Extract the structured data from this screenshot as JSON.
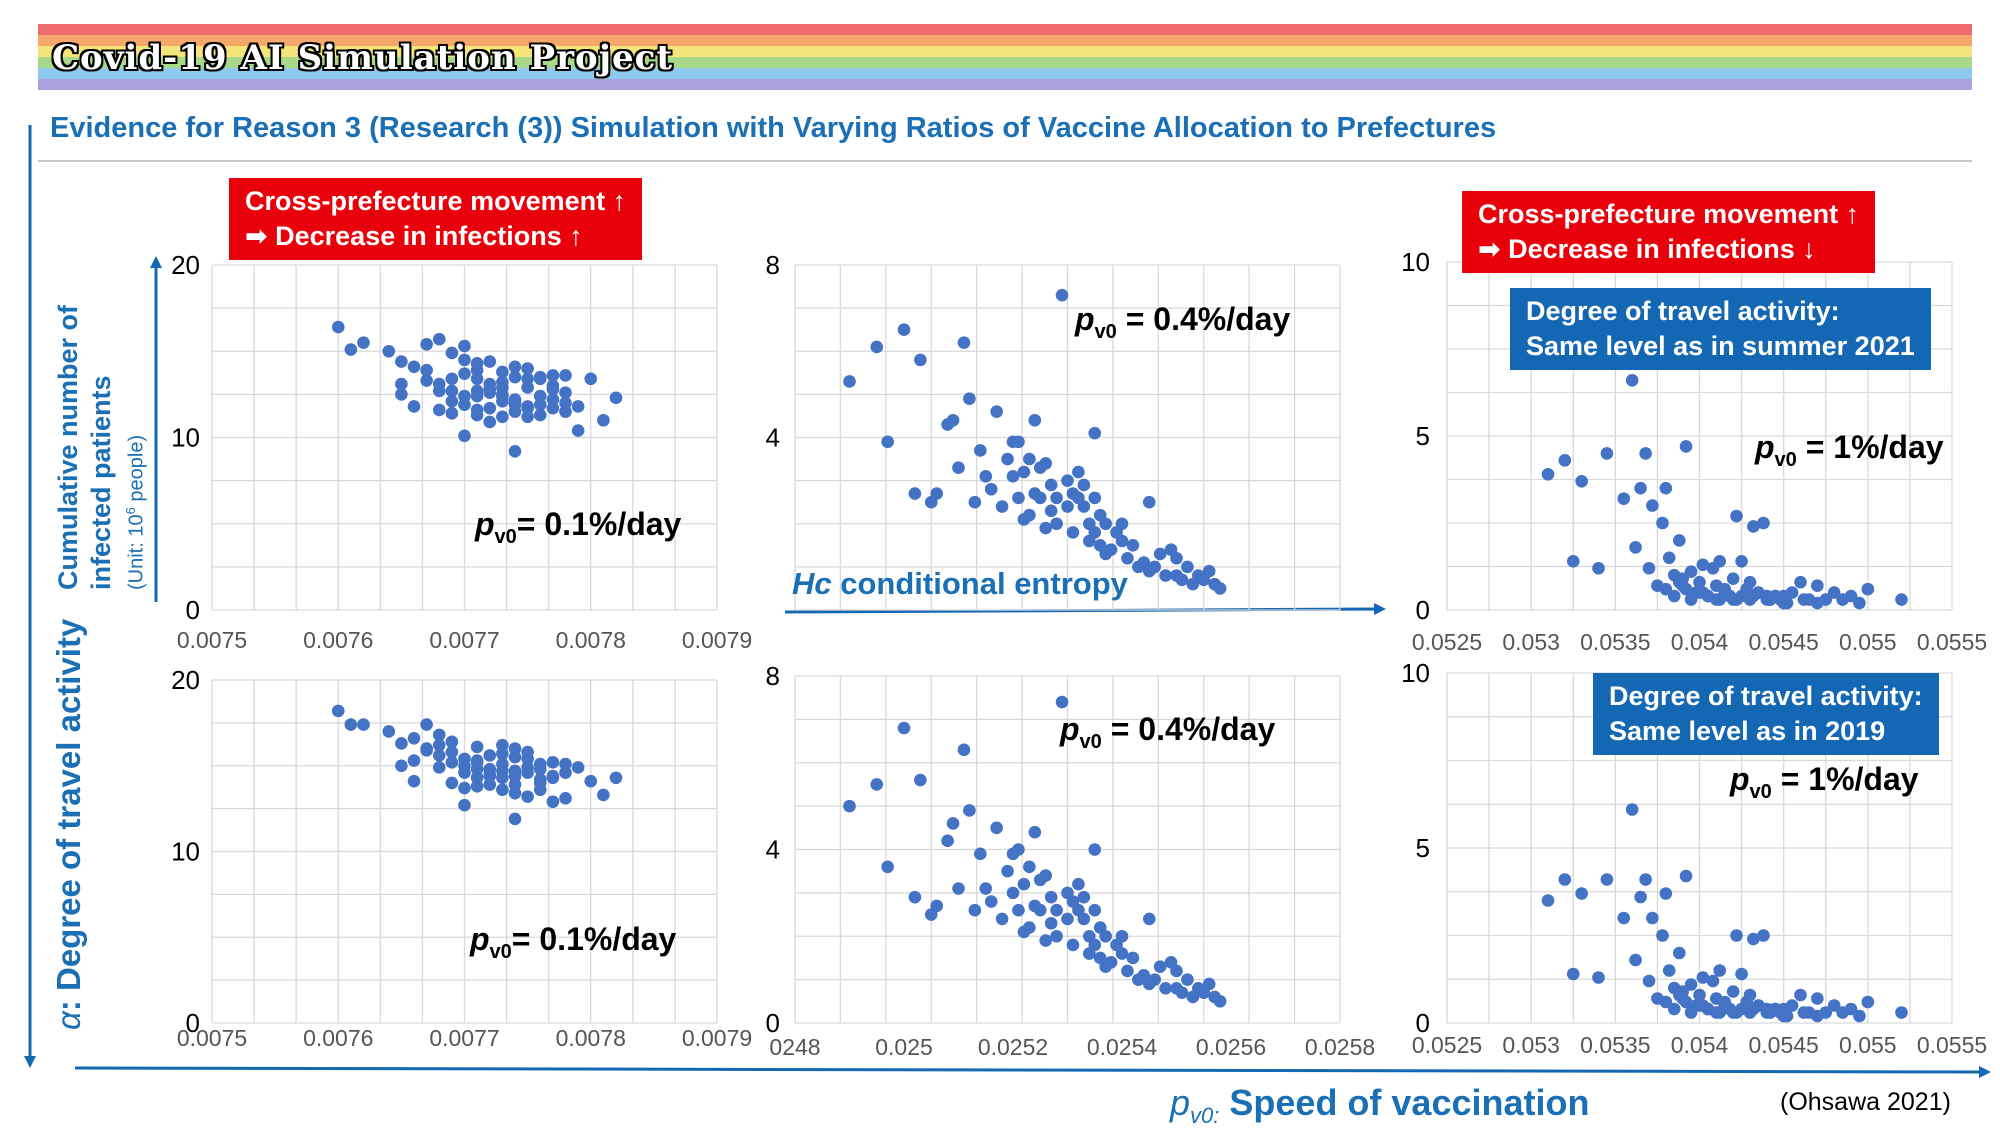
{
  "header": {
    "banner_title": "Covid-19 AI Simulation Project",
    "banner_colors": [
      "#ee6b6f",
      "#f5a86a",
      "#f3e57a",
      "#a9d889",
      "#8fc9ee",
      "#a9a2dc"
    ],
    "subtitle": "Evidence for Reason 3 (Research (3)) Simulation with Varying Ratios of Vaccine Allocation to Prefectures"
  },
  "annotations": {
    "left_box_line1": "Cross-prefecture movement ↑",
    "left_box_line2": "➡    Decrease in infections ↑",
    "right_box_line1": "Cross-prefecture movement ↑",
    "right_box_line2": "➡    Decrease in infections ↓",
    "blue_top_line1": "Degree of travel activity:",
    "blue_top_line2": "Same level as in summer 2021",
    "blue_bottom_line1": "Degree of travel activity:",
    "blue_bottom_line2": "Same level as in 2019",
    "hc_symbol": "Hc",
    "hc_text": " conditional entropy",
    "y_axis_title_line1": "Cumulative number of",
    "y_axis_title_line2": "infected patients",
    "y_axis_unit": "(Unit: 10",
    "y_axis_unit_exp": "6",
    "y_axis_unit_end": " people)",
    "alpha_symbol": "α",
    "alpha_text": ": Degree of travel activity",
    "pv0_symbol": "p",
    "pv0_sub": "v0:",
    "pv0_text": " Speed of vaccination",
    "citation": "(Ohsawa 2021)",
    "accent_blue": "#1a6fb5",
    "alert_red": "#e8000b"
  },
  "chart_data": [
    {
      "type": "scatter",
      "id": "top-left",
      "xlim": [
        0.0075,
        0.0079
      ],
      "ylim": [
        0,
        20
      ],
      "x_ticks": [
        "0.0075",
        "0.0076",
        "0.0077",
        "0.0078",
        "0.0079"
      ],
      "y_ticks": [
        "0",
        "10",
        "20"
      ],
      "grid": true,
      "label": {
        "sym": "p",
        "sub": "v0",
        "text": "= 0.1%/day"
      },
      "x": [
        0.0076,
        0.00761,
        0.00762,
        0.00764,
        0.00765,
        0.00765,
        0.00765,
        0.00766,
        0.00766,
        0.00767,
        0.00767,
        0.00768,
        0.00768,
        0.00768,
        0.00769,
        0.00769,
        0.00769,
        0.00769,
        0.0077,
        0.0077,
        0.0077,
        0.0077,
        0.0077,
        0.00771,
        0.00771,
        0.00771,
        0.00771,
        0.00771,
        0.00772,
        0.00772,
        0.00772,
        0.00772,
        0.00772,
        0.00773,
        0.00773,
        0.00773,
        0.00773,
        0.00773,
        0.00773,
        0.00774,
        0.00774,
        0.00774,
        0.00774,
        0.00774,
        0.00774,
        0.00775,
        0.00775,
        0.00775,
        0.00775,
        0.00775,
        0.00776,
        0.00776,
        0.00776,
        0.00776,
        0.00777,
        0.00777,
        0.00777,
        0.00777,
        0.00778,
        0.00778,
        0.00778,
        0.00778,
        0.00779,
        0.00779,
        0.0078,
        0.00781,
        0.00782,
        0.00767,
        0.00769,
        0.00771,
        0.00773,
        0.00775,
        0.00777,
        0.0077,
        0.00772,
        0.00774,
        0.00776,
        0.00768,
        0.00771,
        0.00774
      ],
      "y": [
        16.4,
        15.1,
        15.5,
        15.0,
        14.4,
        13.1,
        12.5,
        14.1,
        11.8,
        15.4,
        13.3,
        15.7,
        12.7,
        11.6,
        14.9,
        12.1,
        11.4,
        13.4,
        13.7,
        12.4,
        15.3,
        10.1,
        11.9,
        13.4,
        14.3,
        12.7,
        11.3,
        13.9,
        11.7,
        12.8,
        13.1,
        10.9,
        14.4,
        13.2,
        12.4,
        11.2,
        13.8,
        12.5,
        12.9,
        13.5,
        11.9,
        14.1,
        9.2,
        12.2,
        11.5,
        13.4,
        11.8,
        12.9,
        14.0,
        11.2,
        12.4,
        13.4,
        11.9,
        11.3,
        12.8,
        13.6,
        11.7,
        13.0,
        12.0,
        12.6,
        13.6,
        11.5,
        10.4,
        11.8,
        13.4,
        11.0,
        12.3,
        13.9,
        12.7,
        11.6,
        12.1,
        11.7,
        12.2,
        14.5,
        12.6,
        12.0,
        13.5,
        13.1,
        12.4,
        12.0
      ]
    },
    {
      "type": "scatter",
      "id": "top-middle",
      "xlim": [
        0.0248,
        0.0258
      ],
      "ylim": [
        0,
        8
      ],
      "x_ticks": [],
      "y_ticks": [
        "4",
        "8"
      ],
      "grid": true,
      "label": {
        "sym": "p",
        "sub": "v0",
        "text": " = 0.4%/day"
      },
      "x": [
        0.0249,
        0.02495,
        0.02497,
        0.025,
        0.02502,
        0.02503,
        0.02505,
        0.02506,
        0.02508,
        0.02509,
        0.0251,
        0.02511,
        0.02512,
        0.02513,
        0.02514,
        0.02515,
        0.02516,
        0.02517,
        0.02518,
        0.02519,
        0.0252,
        0.0252,
        0.02521,
        0.02521,
        0.02522,
        0.02522,
        0.02523,
        0.02523,
        0.02524,
        0.02524,
        0.02525,
        0.02525,
        0.02526,
        0.02526,
        0.02527,
        0.02527,
        0.02528,
        0.02528,
        0.02529,
        0.0253,
        0.0253,
        0.02531,
        0.02531,
        0.02532,
        0.02532,
        0.02533,
        0.02533,
        0.02534,
        0.02534,
        0.02535,
        0.02535,
        0.02536,
        0.02536,
        0.02537,
        0.02537,
        0.02538,
        0.02539,
        0.0254,
        0.02541,
        0.02542,
        0.02543,
        0.02544,
        0.02545,
        0.02546,
        0.02547,
        0.02548,
        0.02549,
        0.0255,
        0.02551,
        0.02552,
        0.02553,
        0.02554,
        0.02555,
        0.02556,
        0.02557,
        0.02558,
        0.02545,
        0.0255,
        0.0254,
        0.02535
      ],
      "y": [
        5.3,
        6.1,
        3.9,
        6.5,
        2.7,
        5.8,
        2.5,
        2.7,
        4.3,
        4.4,
        3.3,
        6.2,
        4.9,
        2.5,
        3.7,
        3.1,
        2.8,
        4.6,
        2.4,
        3.5,
        3.1,
        3.9,
        2.6,
        3.9,
        2.1,
        3.2,
        2.2,
        3.5,
        2.7,
        4.4,
        2.6,
        3.3,
        1.9,
        3.4,
        2.9,
        2.3,
        2.6,
        2.0,
        7.3,
        2.4,
        3.0,
        1.8,
        2.7,
        2.6,
        3.2,
        2.9,
        2.4,
        2.0,
        1.6,
        2.6,
        1.8,
        2.2,
        1.5,
        2.0,
        1.3,
        1.4,
        1.8,
        1.6,
        1.2,
        1.5,
        1.0,
        1.1,
        0.9,
        1.0,
        1.3,
        0.8,
        1.4,
        0.8,
        0.7,
        1.0,
        0.6,
        0.8,
        0.7,
        0.9,
        0.6,
        0.5,
        2.5,
        1.2,
        2.0,
        4.1
      ]
    },
    {
      "type": "scatter",
      "id": "top-right",
      "xlim": [
        0.0525,
        0.0555
      ],
      "ylim": [
        0,
        10
      ],
      "x_ticks": [
        "0.0525",
        "0.053",
        "0.0535",
        "0.054",
        "0.0545",
        "0.055",
        "0.0555"
      ],
      "y_ticks": [
        "0",
        "5",
        "10"
      ],
      "grid": true,
      "label": {
        "sym": "p",
        "sub": "v0",
        "text": " = 1%/day"
      },
      "x": [
        0.0531,
        0.0532,
        0.05325,
        0.0533,
        0.0534,
        0.05345,
        0.05355,
        0.0536,
        0.05362,
        0.05365,
        0.05368,
        0.0537,
        0.05372,
        0.05375,
        0.05378,
        0.0538,
        0.05382,
        0.05385,
        0.05388,
        0.0539,
        0.05392,
        0.05395,
        0.05398,
        0.054,
        0.05402,
        0.05405,
        0.05408,
        0.0541,
        0.05412,
        0.05415,
        0.05418,
        0.0542,
        0.05422,
        0.05425,
        0.05428,
        0.0543,
        0.05432,
        0.05435,
        0.05438,
        0.0544,
        0.05442,
        0.05445,
        0.05448,
        0.0545,
        0.05455,
        0.0546,
        0.05465,
        0.0547,
        0.05475,
        0.0548,
        0.05485,
        0.0549,
        0.05495,
        0.055,
        0.0552,
        0.0538,
        0.05385,
        0.0539,
        0.05395,
        0.054,
        0.05405,
        0.0541,
        0.05415,
        0.0542,
        0.05425,
        0.0543,
        0.05435,
        0.0544,
        0.05445,
        0.0545,
        0.05388,
        0.05392,
        0.05402,
        0.05412,
        0.05422,
        0.05432,
        0.05442,
        0.05452,
        0.05462,
        0.0547
      ],
      "y": [
        3.9,
        4.3,
        1.4,
        3.7,
        1.2,
        4.5,
        3.2,
        6.6,
        1.8,
        3.5,
        4.5,
        1.2,
        3.0,
        0.7,
        2.5,
        3.5,
        1.5,
        1.0,
        2.0,
        0.9,
        4.7,
        1.1,
        0.5,
        0.8,
        1.3,
        0.4,
        1.2,
        0.7,
        1.4,
        0.6,
        0.4,
        0.9,
        2.7,
        1.4,
        0.6,
        0.8,
        2.4,
        0.5,
        2.5,
        0.4,
        0.3,
        0.4,
        0.3,
        0.4,
        0.5,
        0.8,
        0.3,
        0.7,
        0.3,
        0.5,
        0.3,
        0.4,
        0.2,
        0.6,
        0.3,
        0.6,
        0.4,
        0.7,
        0.3,
        0.5,
        0.4,
        0.3,
        0.5,
        0.3,
        0.4,
        0.3,
        0.5,
        0.3,
        0.4,
        0.2,
        0.8,
        0.6,
        0.5,
        0.3,
        0.3,
        0.4,
        0.3,
        0.2,
        0.3,
        0.2
      ]
    },
    {
      "type": "scatter",
      "id": "bottom-left",
      "xlim": [
        0.0075,
        0.0079
      ],
      "ylim": [
        0,
        20
      ],
      "x_ticks": [
        "0.0075",
        "0.0076",
        "0.0077",
        "0.0078",
        "0.0079"
      ],
      "y_ticks": [
        "0",
        "10",
        "20"
      ],
      "grid": true,
      "label": {
        "sym": "p",
        "sub": "v0",
        "text": "= 0.1%/day"
      },
      "x": [
        0.0076,
        0.00761,
        0.00762,
        0.00764,
        0.00765,
        0.00765,
        0.00766,
        0.00766,
        0.00767,
        0.00767,
        0.00768,
        0.00768,
        0.00768,
        0.00769,
        0.00769,
        0.00769,
        0.0077,
        0.0077,
        0.0077,
        0.0077,
        0.00771,
        0.00771,
        0.00771,
        0.00771,
        0.00772,
        0.00772,
        0.00772,
        0.00772,
        0.00773,
        0.00773,
        0.00773,
        0.00773,
        0.00773,
        0.00774,
        0.00774,
        0.00774,
        0.00774,
        0.00774,
        0.00775,
        0.00775,
        0.00775,
        0.00775,
        0.00776,
        0.00776,
        0.00776,
        0.00776,
        0.00777,
        0.00777,
        0.00777,
        0.00778,
        0.00778,
        0.00778,
        0.00779,
        0.0078,
        0.00781,
        0.00782,
        0.00767,
        0.00769,
        0.00771,
        0.00773,
        0.00775,
        0.00777,
        0.0077,
        0.00772,
        0.00774,
        0.00776,
        0.00768,
        0.00771,
        0.00774,
        0.00766
      ],
      "y": [
        18.2,
        17.4,
        17.4,
        17.0,
        16.3,
        15.0,
        14.1,
        16.6,
        17.4,
        15.9,
        16.8,
        14.9,
        16.2,
        16.4,
        15.8,
        14.0,
        15.4,
        13.7,
        12.7,
        14.6,
        16.1,
        15.2,
        14.3,
        13.8,
        15.6,
        14.5,
        13.9,
        14.8,
        16.2,
        15.1,
        14.3,
        13.6,
        15.7,
        16.0,
        14.7,
        13.9,
        11.9,
        14.4,
        15.4,
        14.6,
        13.2,
        14.9,
        15.1,
        14.2,
        13.6,
        14.8,
        15.2,
        14.4,
        12.9,
        15.1,
        14.6,
        13.1,
        14.9,
        14.1,
        13.3,
        14.3,
        16.0,
        15.2,
        15.3,
        14.7,
        15.8,
        14.3,
        15.0,
        14.4,
        15.5,
        14.0,
        15.6,
        14.8,
        13.4,
        15.3
      ]
    },
    {
      "type": "scatter",
      "id": "bottom-middle",
      "xlim": [
        0.0248,
        0.0258
      ],
      "ylim": [
        0,
        8
      ],
      "x_ticks": [
        "0248",
        "0.025",
        "0.0252",
        "0.0254",
        "0.0256",
        "0.0258"
      ],
      "y_ticks": [
        "0",
        "4",
        "8"
      ],
      "grid": true,
      "label": {
        "sym": "p",
        "sub": "v0",
        "text": " = 0.4%/day"
      },
      "x": [
        0.0249,
        0.02495,
        0.02497,
        0.025,
        0.02502,
        0.02503,
        0.02505,
        0.02506,
        0.02508,
        0.02509,
        0.0251,
        0.02511,
        0.02512,
        0.02513,
        0.02514,
        0.02515,
        0.02516,
        0.02517,
        0.02518,
        0.02519,
        0.0252,
        0.0252,
        0.02521,
        0.02521,
        0.02522,
        0.02522,
        0.02523,
        0.02523,
        0.02524,
        0.02524,
        0.02525,
        0.02525,
        0.02526,
        0.02526,
        0.02527,
        0.02527,
        0.02528,
        0.02528,
        0.02529,
        0.0253,
        0.0253,
        0.02531,
        0.02531,
        0.02532,
        0.02532,
        0.02533,
        0.02533,
        0.02534,
        0.02534,
        0.02535,
        0.02535,
        0.02536,
        0.02536,
        0.02537,
        0.02537,
        0.02538,
        0.02539,
        0.0254,
        0.02541,
        0.02542,
        0.02543,
        0.02544,
        0.02545,
        0.02546,
        0.02547,
        0.02548,
        0.02549,
        0.0255,
        0.02551,
        0.02552,
        0.02553,
        0.02554,
        0.02555,
        0.02556,
        0.02557,
        0.02558,
        0.02545,
        0.0255,
        0.0254,
        0.02535
      ],
      "y": [
        5.0,
        5.5,
        3.6,
        6.8,
        2.9,
        5.6,
        2.5,
        2.7,
        4.2,
        4.6,
        3.1,
        6.3,
        4.9,
        2.6,
        3.9,
        3.1,
        2.8,
        4.5,
        2.4,
        3.5,
        3.0,
        3.9,
        2.6,
        4.0,
        2.1,
        3.2,
        2.2,
        3.6,
        2.7,
        4.4,
        2.6,
        3.3,
        1.9,
        3.4,
        2.9,
        2.3,
        2.6,
        2.0,
        7.4,
        2.4,
        3.0,
        1.8,
        2.8,
        2.6,
        3.2,
        2.9,
        2.4,
        2.0,
        1.6,
        2.6,
        1.8,
        2.2,
        1.5,
        2.0,
        1.3,
        1.4,
        1.8,
        1.6,
        1.2,
        1.5,
        1.0,
        1.1,
        0.9,
        1.0,
        1.3,
        0.8,
        1.4,
        0.8,
        0.7,
        1.0,
        0.6,
        0.8,
        0.7,
        0.9,
        0.6,
        0.5,
        2.4,
        1.2,
        2.0,
        4.0
      ]
    },
    {
      "type": "scatter",
      "id": "bottom-right",
      "xlim": [
        0.0525,
        0.0555
      ],
      "ylim": [
        0,
        10
      ],
      "x_ticks": [
        "0.0525",
        "0.053",
        "0.0535",
        "0.054",
        "0.0545",
        "0.055",
        "0.0555"
      ],
      "y_ticks": [
        "0",
        "5",
        "10"
      ],
      "grid": true,
      "label": {
        "sym": "p",
        "sub": "v0",
        "text": " = 1%/day"
      },
      "x": [
        0.0531,
        0.0532,
        0.05325,
        0.0533,
        0.0534,
        0.05345,
        0.05355,
        0.0536,
        0.05362,
        0.05365,
        0.05368,
        0.0537,
        0.05372,
        0.05375,
        0.05378,
        0.0538,
        0.05382,
        0.05385,
        0.05388,
        0.0539,
        0.05392,
        0.05395,
        0.05398,
        0.054,
        0.05402,
        0.05405,
        0.05408,
        0.0541,
        0.05412,
        0.05415,
        0.05418,
        0.0542,
        0.05422,
        0.05425,
        0.05428,
        0.0543,
        0.05432,
        0.05435,
        0.05438,
        0.0544,
        0.05442,
        0.05445,
        0.05448,
        0.0545,
        0.05455,
        0.0546,
        0.05465,
        0.0547,
        0.05475,
        0.0548,
        0.05485,
        0.0549,
        0.05495,
        0.055,
        0.0552,
        0.0538,
        0.05385,
        0.0539,
        0.05395,
        0.054,
        0.05405,
        0.0541,
        0.05415,
        0.0542,
        0.05425,
        0.0543,
        0.05435,
        0.0544,
        0.05445,
        0.0545,
        0.05388,
        0.05392,
        0.05402,
        0.05412,
        0.05422,
        0.05432,
        0.05442,
        0.05452,
        0.05462,
        0.0547
      ],
      "y": [
        3.5,
        4.1,
        1.4,
        3.7,
        1.3,
        4.1,
        3.0,
        6.1,
        1.8,
        3.6,
        4.1,
        1.2,
        3.0,
        0.7,
        2.5,
        3.7,
        1.5,
        1.0,
        2.0,
        0.9,
        4.2,
        1.1,
        0.5,
        0.8,
        1.3,
        0.4,
        1.2,
        0.7,
        1.5,
        0.6,
        0.4,
        0.9,
        2.5,
        1.4,
        0.6,
        0.8,
        2.4,
        0.5,
        2.5,
        0.4,
        0.3,
        0.4,
        0.3,
        0.4,
        0.5,
        0.8,
        0.3,
        0.7,
        0.3,
        0.5,
        0.3,
        0.4,
        0.2,
        0.6,
        0.3,
        0.6,
        0.4,
        0.7,
        0.3,
        0.5,
        0.4,
        0.3,
        0.5,
        0.3,
        0.4,
        0.3,
        0.5,
        0.3,
        0.4,
        0.2,
        0.8,
        0.6,
        0.5,
        0.3,
        0.3,
        0.4,
        0.3,
        0.2,
        0.3,
        0.2
      ]
    }
  ]
}
